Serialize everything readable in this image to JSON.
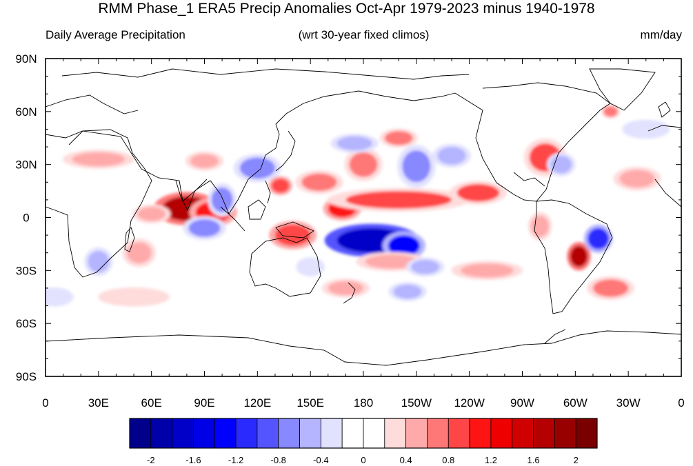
{
  "title": "RMM Phase_1 ERA5 Precip Anomalies Oct-Apr 1979-2023 minus 1940-1978",
  "subtitle_left": "Daily Average Precipitation",
  "subtitle_center": "(wrt 30-year fixed climos)",
  "subtitle_right": "mm/day",
  "lat_labels": [
    "90N",
    "60N",
    "30N",
    "0",
    "30S",
    "60S",
    "90S"
  ],
  "lon_labels": [
    "0",
    "30E",
    "60E",
    "90E",
    "120E",
    "150E",
    "180",
    "150W",
    "120W",
    "90W",
    "60W",
    "30W",
    "0"
  ],
  "colorbar": {
    "colors": [
      "#00008b",
      "#0000a8",
      "#0000c8",
      "#0000e6",
      "#0000ff",
      "#2a2aff",
      "#5555ff",
      "#8888ff",
      "#b4b4ff",
      "#e2e2ff",
      "#ffffff",
      "#ffffff",
      "#ffdcdc",
      "#ffaaaa",
      "#ff7878",
      "#ff4646",
      "#ff1414",
      "#ee0000",
      "#d00000",
      "#b40000",
      "#980000",
      "#7a0000"
    ],
    "labels": [
      "-2",
      "-1.6",
      "-1.2",
      "-0.8",
      "-0.4",
      "0",
      "0.4",
      "0.8",
      "1.2",
      "1.6",
      "2"
    ]
  },
  "anomaly_regions": [
    {
      "lon": 80,
      "lat": 5,
      "rx": 14,
      "ry": 7,
      "value": 1.6
    },
    {
      "lon": 95,
      "lat": 3,
      "rx": 10,
      "ry": 6,
      "value": 1.0
    },
    {
      "lon": 168,
      "lat": 5,
      "rx": 8,
      "ry": 5,
      "value": 1.0
    },
    {
      "lon": 200,
      "lat": 10,
      "rx": 30,
      "ry": 5,
      "value": 0.8
    },
    {
      "lon": 245,
      "lat": 14,
      "rx": 12,
      "ry": 5,
      "value": 0.8
    },
    {
      "lon": 185,
      "lat": -13,
      "rx": 20,
      "ry": 7,
      "value": -1.8
    },
    {
      "lon": 203,
      "lat": -16,
      "rx": 9,
      "ry": 6,
      "value": -1.3
    },
    {
      "lon": 140,
      "lat": -10,
      "rx": 10,
      "ry": 6,
      "value": 0.9
    },
    {
      "lon": 302,
      "lat": -22,
      "rx": 5,
      "ry": 6,
      "value": 1.6
    },
    {
      "lon": 313,
      "lat": -12,
      "rx": 6,
      "ry": 6,
      "value": -1.2
    },
    {
      "lon": 283,
      "lat": 34,
      "rx": 9,
      "ry": 8,
      "value": 0.8
    },
    {
      "lon": 292,
      "lat": 30,
      "rx": 6,
      "ry": 5,
      "value": -0.6
    },
    {
      "lon": 210,
      "lat": 29,
      "rx": 8,
      "ry": 9,
      "value": -0.8
    },
    {
      "lon": 180,
      "lat": 30,
      "rx": 8,
      "ry": 7,
      "value": 0.7
    },
    {
      "lon": 120,
      "lat": 28,
      "rx": 10,
      "ry": 6,
      "value": -0.8
    },
    {
      "lon": 100,
      "lat": 10,
      "rx": 6,
      "ry": 7,
      "value": -0.8
    },
    {
      "lon": 90,
      "lat": -6,
      "rx": 9,
      "ry": 5,
      "value": -0.8
    },
    {
      "lon": 53,
      "lat": -20,
      "rx": 7,
      "ry": 6,
      "value": 0.4
    },
    {
      "lon": 30,
      "lat": -25,
      "rx": 6,
      "ry": 6,
      "value": -0.5
    },
    {
      "lon": 30,
      "lat": 33,
      "rx": 15,
      "ry": 4,
      "value": 0.4
    },
    {
      "lon": 90,
      "lat": 32,
      "rx": 8,
      "ry": 4,
      "value": 0.5
    },
    {
      "lon": 133,
      "lat": 18,
      "rx": 5,
      "ry": 4,
      "value": 0.9
    },
    {
      "lon": 155,
      "lat": 20,
      "rx": 10,
      "ry": 5,
      "value": 0.6
    },
    {
      "lon": 175,
      "lat": 42,
      "rx": 10,
      "ry": 4,
      "value": -0.6
    },
    {
      "lon": 200,
      "lat": 45,
      "rx": 8,
      "ry": 4,
      "value": 0.6
    },
    {
      "lon": 230,
      "lat": 35,
      "rx": 8,
      "ry": 5,
      "value": -0.5
    },
    {
      "lon": 196,
      "lat": -25,
      "rx": 15,
      "ry": 4,
      "value": 0.5
    },
    {
      "lon": 215,
      "lat": -28,
      "rx": 8,
      "ry": 4,
      "value": -0.6
    },
    {
      "lon": 250,
      "lat": -30,
      "rx": 15,
      "ry": 4,
      "value": 0.4
    },
    {
      "lon": 320,
      "lat": -40,
      "rx": 10,
      "ry": 5,
      "value": 0.7
    },
    {
      "lon": 170,
      "lat": -40,
      "rx": 10,
      "ry": 4,
      "value": 0.5
    },
    {
      "lon": 50,
      "lat": -45,
      "rx": 15,
      "ry": 4,
      "value": 0.3
    },
    {
      "lon": 5,
      "lat": -45,
      "rx": 8,
      "ry": 4,
      "value": -0.3
    },
    {
      "lon": 335,
      "lat": 22,
      "rx": 10,
      "ry": 5,
      "value": 0.4
    },
    {
      "lon": 340,
      "lat": 50,
      "rx": 10,
      "ry": 4,
      "value": -0.3
    },
    {
      "lon": 320,
      "lat": 60,
      "rx": 4,
      "ry": 3,
      "value": 0.7
    },
    {
      "lon": 280,
      "lat": -5,
      "rx": 5,
      "ry": 6,
      "value": 0.4
    },
    {
      "lon": 205,
      "lat": -42,
      "rx": 8,
      "ry": 4,
      "value": -0.5
    },
    {
      "lon": 150,
      "lat": -28,
      "rx": 6,
      "ry": 4,
      "value": -0.4
    },
    {
      "lon": 60,
      "lat": 2,
      "rx": 8,
      "ry": 4,
      "value": 0.5
    }
  ]
}
